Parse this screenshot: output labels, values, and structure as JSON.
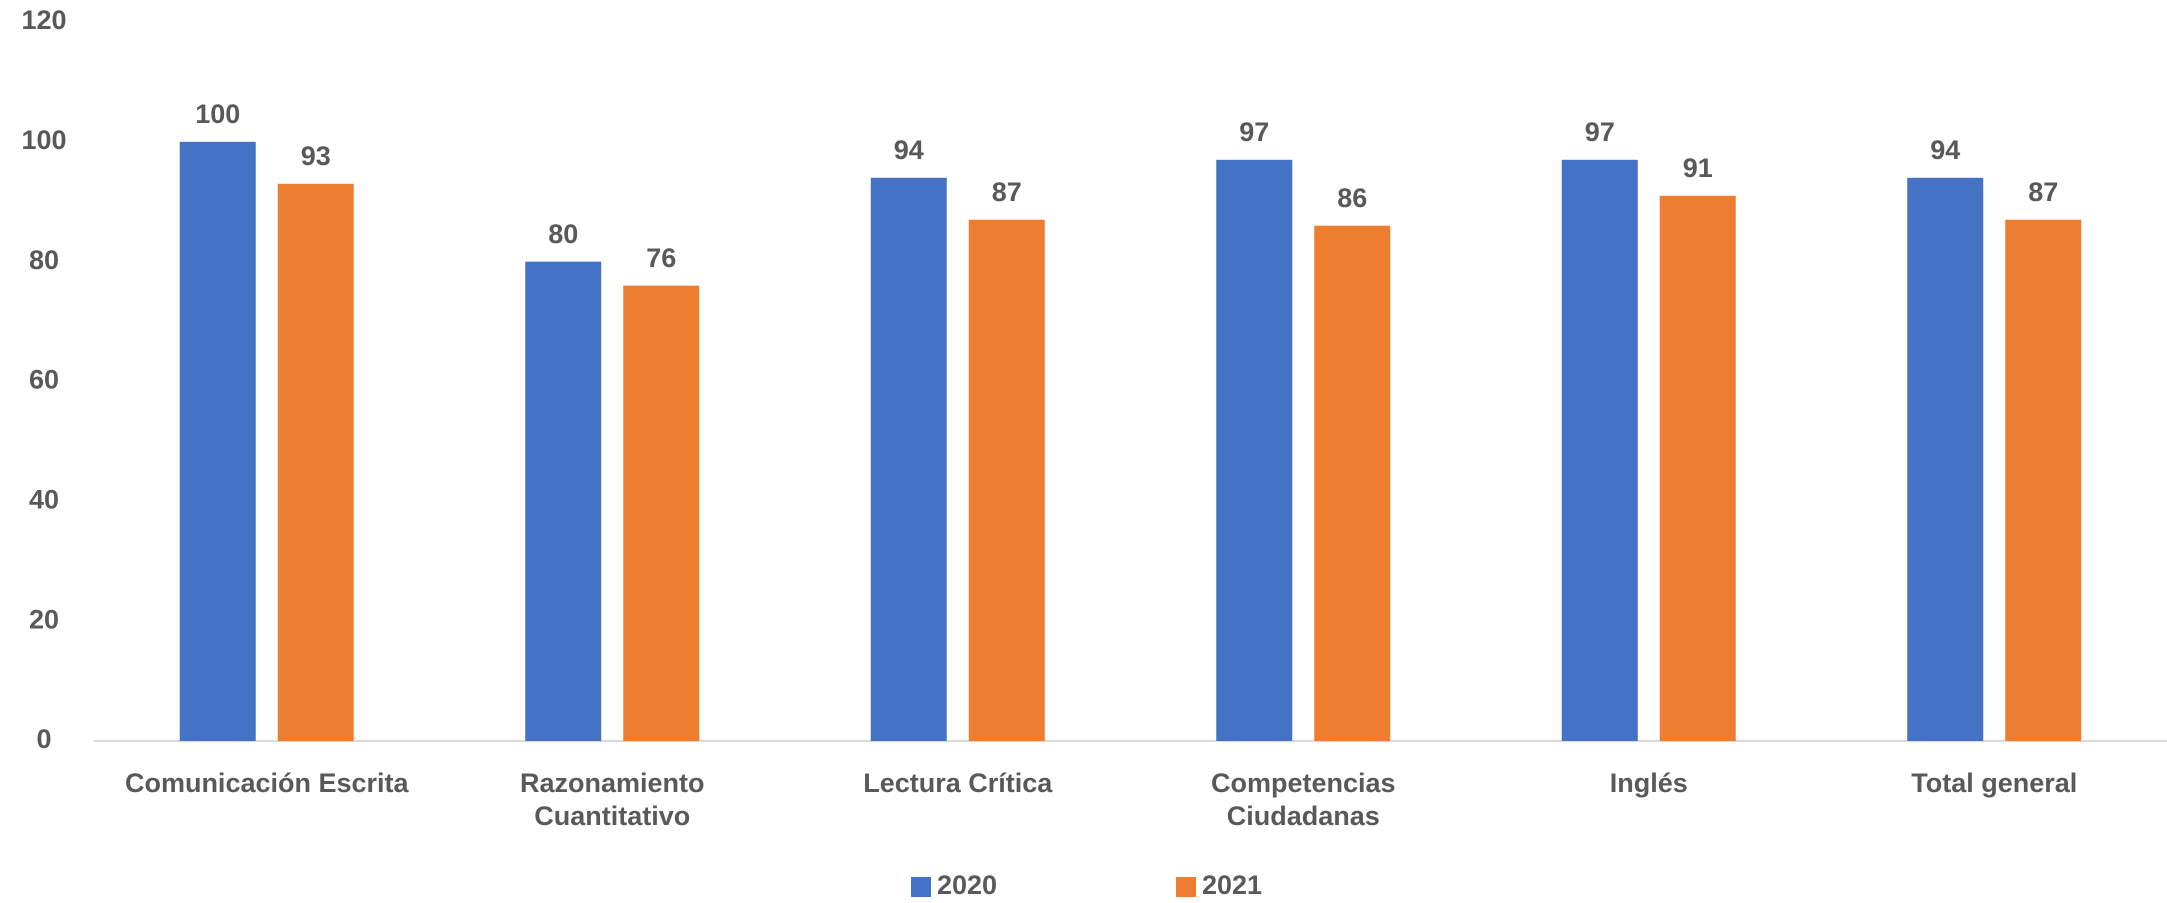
{
  "chart_data": {
    "type": "bar",
    "categories": [
      "Comunicación Escrita",
      "Razonamiento Cuantitativo",
      "Lectura Crítica",
      "Competencias Ciudadanas",
      "Inglés",
      "Total general"
    ],
    "series": [
      {
        "name": "2020",
        "color": "#4472c4",
        "values": [
          100,
          80,
          94,
          97,
          97,
          94
        ]
      },
      {
        "name": "2021",
        "color": "#ed7d31",
        "values": [
          93,
          76,
          87,
          86,
          91,
          87
        ]
      }
    ],
    "ylim": [
      0,
      120
    ],
    "yticks": [
      0,
      20,
      40,
      60,
      80,
      100,
      120
    ],
    "grid": false,
    "legend": "bottom"
  }
}
